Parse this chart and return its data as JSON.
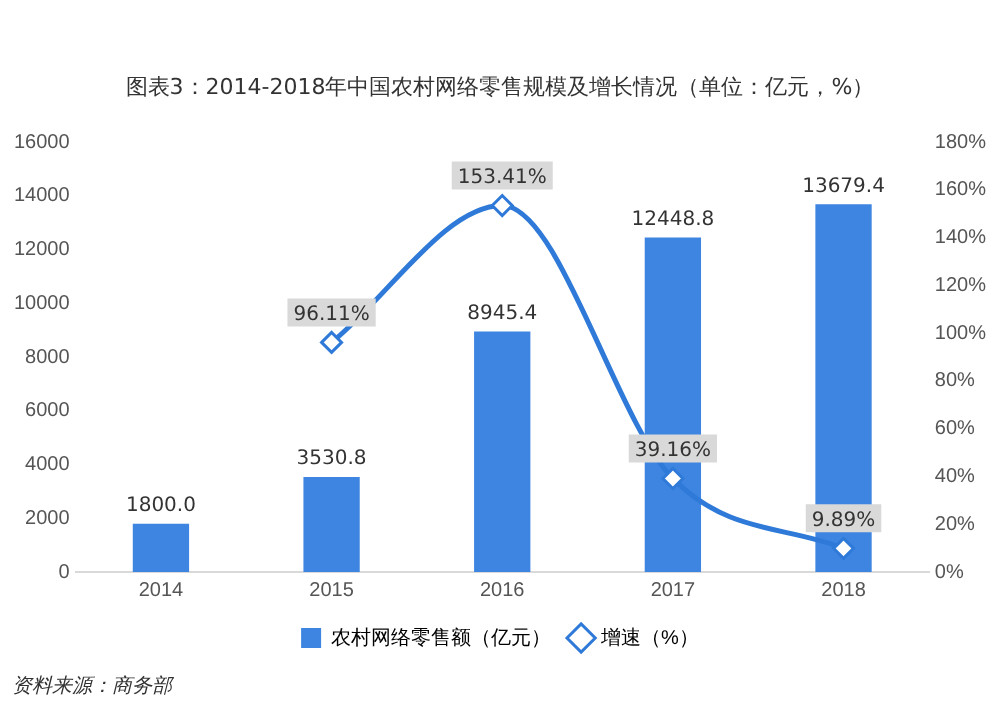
{
  "chart_data": {
    "type": "bar",
    "title": "图表3：2014-2018年中国农村网络零售规模及增长情况（单位：亿元，%）",
    "categories": [
      "2014",
      "2015",
      "2016",
      "2017",
      "2018"
    ],
    "series": [
      {
        "name": "农村网络零售额（亿元）",
        "color": "#3d85e0",
        "values": [
          1800.0,
          3530.8,
          8945.4,
          12448.8,
          13679.4
        ],
        "value_labels": [
          "1800.0",
          "3530.8",
          "8945.4",
          "12448.8",
          "13679.4"
        ]
      },
      {
        "name": "增速（%）",
        "type": "line",
        "axis": "y2",
        "color": "#2f7ad8",
        "marker": "diamond",
        "values": [
          null,
          96.11,
          153.41,
          39.16,
          9.89
        ],
        "value_labels": [
          null,
          "96.11%",
          "153.41%",
          "39.16%",
          "9.89%"
        ]
      }
    ],
    "ylim": [
      0,
      16000
    ],
    "yticks": [
      0,
      2000,
      4000,
      6000,
      8000,
      10000,
      12000,
      14000,
      16000
    ],
    "y2lim": [
      0,
      180
    ],
    "y2ticks": [
      {
        "value": 0,
        "label": "0%"
      },
      {
        "value": 20,
        "label": "20%"
      },
      {
        "value": 40,
        "label": "40%"
      },
      {
        "value": 60,
        "label": "60%"
      },
      {
        "value": 80,
        "label": "80%"
      },
      {
        "value": 100,
        "label": "100%"
      },
      {
        "value": 120,
        "label": "120%"
      },
      {
        "value": 140,
        "label": "140%"
      },
      {
        "value": 160,
        "label": "160%"
      },
      {
        "value": 180,
        "label": "180%"
      }
    ],
    "grid": false,
    "legend": "bottom",
    "annotations": [
      "资料来源：商务部"
    ]
  }
}
